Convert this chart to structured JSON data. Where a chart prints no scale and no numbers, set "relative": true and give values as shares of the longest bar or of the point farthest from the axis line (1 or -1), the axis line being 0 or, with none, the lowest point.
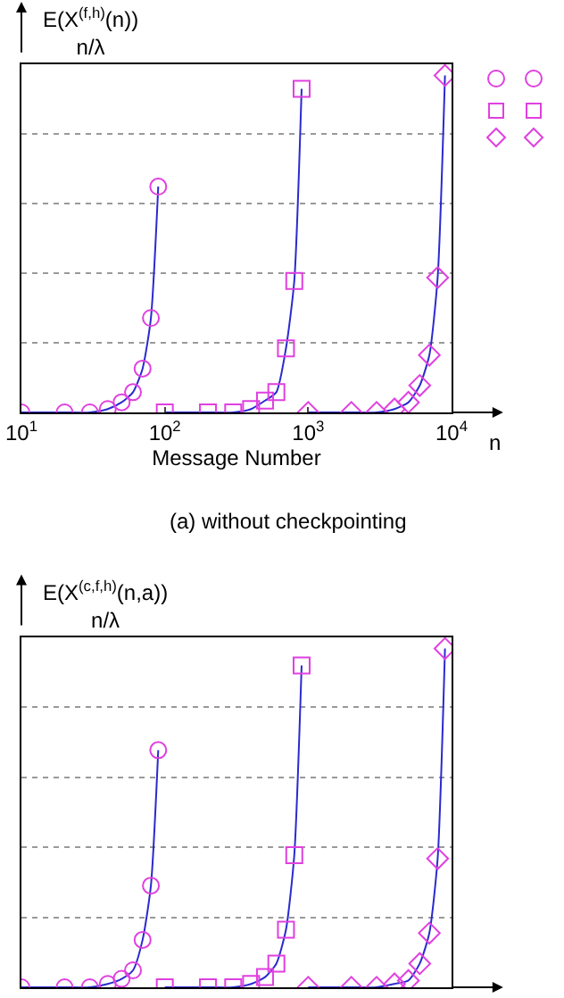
{
  "chart_data": [
    {
      "type": "scatter",
      "ylabel": "E(X$^{(f,h)}$(n))\nn/λ",
      "xlabel": "Message Number",
      "annotations": [
        "n",
        "(a) without checkpointing"
      ],
      "log": "x",
      "relative": true,
      "grid": "y",
      "xlim": [
        10,
        10000
      ],
      "xticks": [
        {
          "value": 10,
          "label": "10$^{1}$"
        },
        {
          "value": 100,
          "label": "10$^{2}$"
        },
        {
          "value": 1000,
          "label": "10$^{3}$"
        },
        {
          "value": 10000,
          "label": "10$^{4}$"
        }
      ],
      "series": [
        {
          "type": "line",
          "color": "#2a2ad0",
          "marker": "none",
          "x": [
            10,
            20,
            30,
            40,
            50,
            60,
            70,
            80,
            90
          ],
          "values": [
            0,
            0,
            0,
            0.01,
            0.03,
            0.06,
            0.13,
            0.28,
            0.67
          ]
        },
        {
          "type": "line",
          "color": "#2a2ad0",
          "marker": "none",
          "x": [
            100,
            200,
            300,
            400,
            500,
            600,
            700,
            800,
            900
          ],
          "values": [
            0,
            0,
            0,
            0.01,
            0.035,
            0.06,
            0.19,
            0.39,
            0.96
          ]
        },
        {
          "type": "line",
          "color": "#2a2ad0",
          "marker": "none",
          "x": [
            1000,
            2000,
            3000,
            4000,
            5000,
            6000,
            7000,
            8000,
            9000
          ],
          "values": [
            0,
            0,
            0,
            0.01,
            0.03,
            0.08,
            0.17,
            0.4,
            1
          ]
        },
        {
          "type": "scatter",
          "color": "#e040e0",
          "marker": "circle",
          "x": [
            10,
            20,
            30,
            40,
            50,
            60,
            70,
            80,
            90
          ],
          "values": [
            0,
            0,
            0,
            0.01,
            0.03,
            0.06,
            0.13,
            0.28,
            0.67
          ]
        },
        {
          "type": "scatter",
          "color": "#e040e0",
          "marker": "square",
          "x": [
            100,
            200,
            300,
            400,
            500,
            600,
            700,
            800,
            900
          ],
          "values": [
            0,
            0,
            0,
            0.01,
            0.035,
            0.06,
            0.19,
            0.39,
            0.96
          ]
        },
        {
          "type": "scatter",
          "color": "#e040e0",
          "marker": "diamond",
          "x": [
            1000,
            2000,
            3000,
            4000,
            5000,
            6000,
            7000,
            8000,
            9000
          ],
          "values": [
            0,
            0,
            0,
            0.01,
            0.03,
            0.08,
            0.17,
            0.4,
            1
          ]
        }
      ]
    },
    {
      "type": "scatter",
      "ylabel": "E(X$^{(c,f,h)}$(n,a))\nn/λ",
      "log": "x",
      "relative": true,
      "grid": "y",
      "xlim": [
        10,
        10000
      ],
      "series": [
        {
          "type": "line",
          "color": "#2a2ad0",
          "marker": "none",
          "x": [
            10,
            20,
            30,
            40,
            50,
            60,
            70,
            80,
            90
          ],
          "values": [
            0,
            0,
            0,
            0.01,
            0.025,
            0.05,
            0.14,
            0.3,
            0.7
          ]
        },
        {
          "type": "line",
          "color": "#2a2ad0",
          "marker": "none",
          "x": [
            100,
            200,
            300,
            400,
            500,
            600,
            700,
            800,
            900
          ],
          "values": [
            0,
            0,
            0,
            0.01,
            0.03,
            0.07,
            0.17,
            0.39,
            0.95
          ]
        },
        {
          "type": "line",
          "color": "#2a2ad0",
          "marker": "none",
          "x": [
            1000,
            2000,
            3000,
            4000,
            5000,
            6000,
            7000,
            8000,
            9000
          ],
          "values": [
            0,
            0,
            0,
            0.01,
            0.02,
            0.07,
            0.16,
            0.38,
            1
          ]
        },
        {
          "type": "scatter",
          "color": "#e040e0",
          "marker": "circle",
          "x": [
            10,
            20,
            30,
            40,
            50,
            60,
            70,
            80,
            90
          ],
          "values": [
            0,
            0,
            0,
            0.01,
            0.025,
            0.05,
            0.14,
            0.3,
            0.7
          ]
        },
        {
          "type": "scatter",
          "color": "#e040e0",
          "marker": "square",
          "x": [
            100,
            200,
            300,
            400,
            500,
            600,
            700,
            800,
            900
          ],
          "values": [
            0,
            0,
            0,
            0.01,
            0.03,
            0.07,
            0.17,
            0.39,
            0.95
          ]
        },
        {
          "type": "scatter",
          "color": "#e040e0",
          "marker": "diamond",
          "x": [
            1000,
            2000,
            3000,
            4000,
            5000,
            6000,
            7000,
            8000,
            9000
          ],
          "values": [
            0,
            0,
            0,
            0.01,
            0.02,
            0.07,
            0.16,
            0.38,
            1
          ]
        }
      ]
    }
  ]
}
